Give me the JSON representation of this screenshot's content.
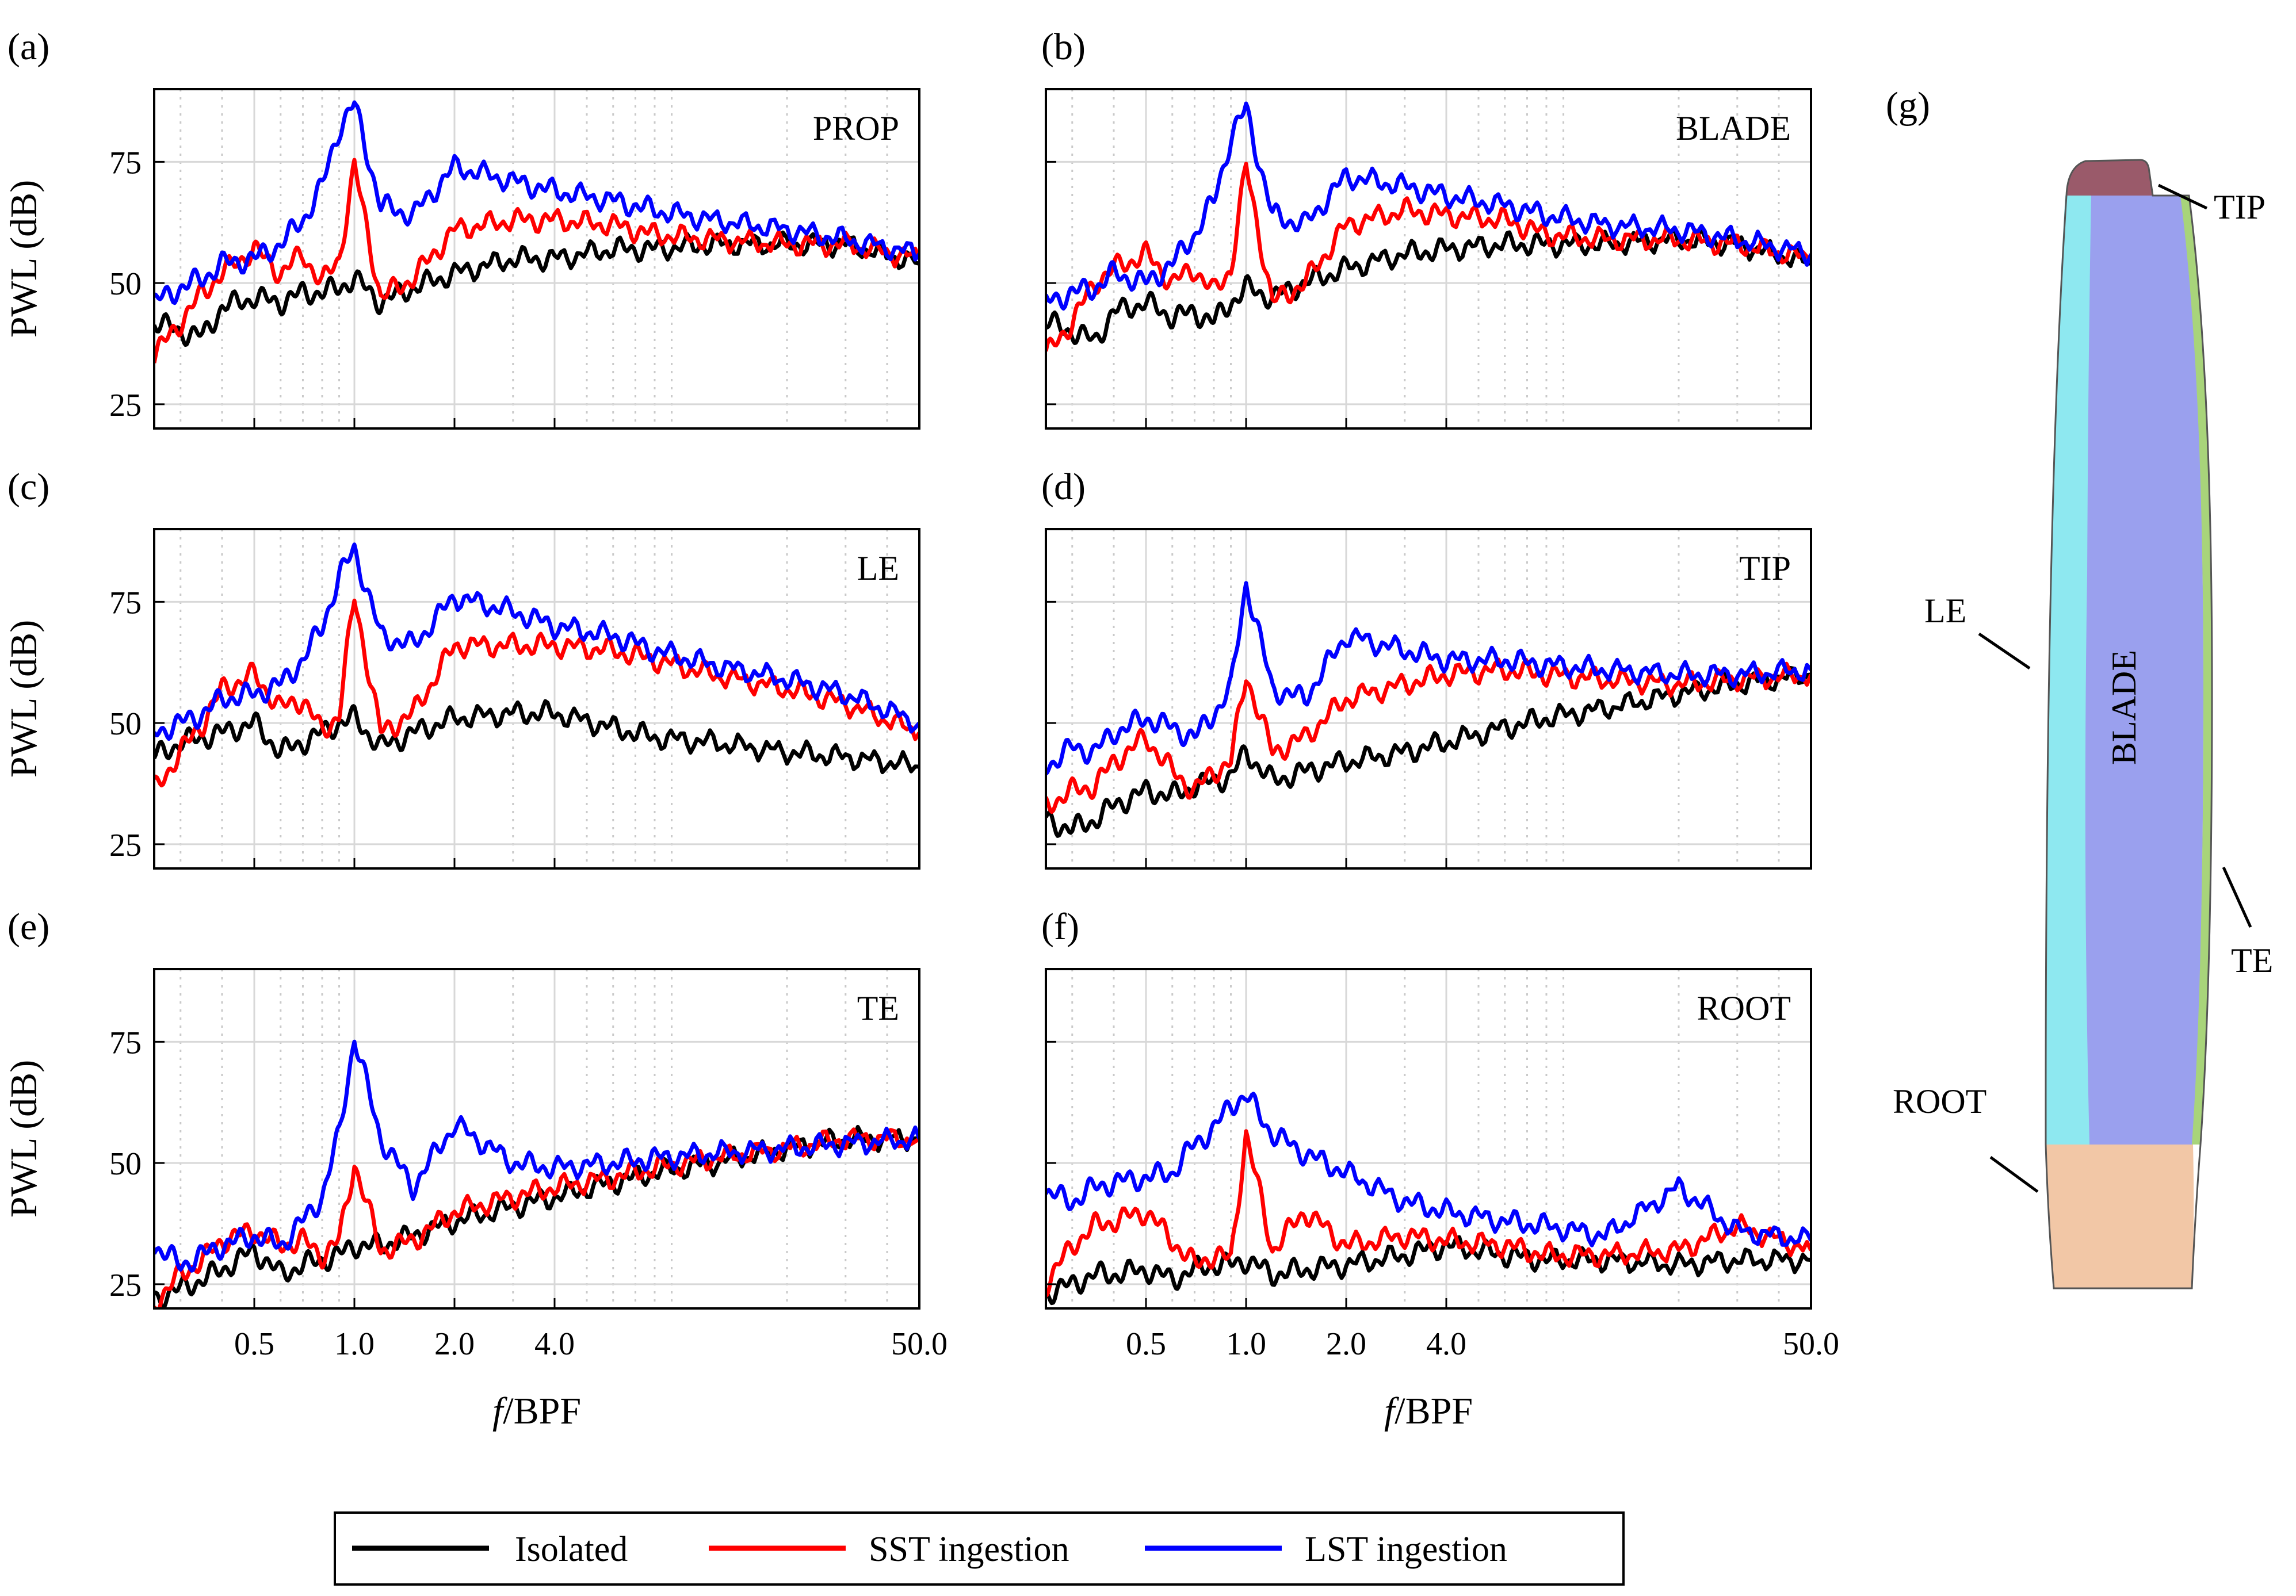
{
  "colors": {
    "isolated": "#000000",
    "sst": "#ff0000",
    "lst": "#0000ff",
    "grid": "#d8d8d8",
    "le_region": "#8ee8f0",
    "blade_region": "#9aa0ee",
    "te_region": "#a8d47a",
    "tip_region": "#9a5a6a",
    "root_region": "#f2c7a6"
  },
  "legend": {
    "placement": "bottom-center",
    "entries": [
      "Isolated",
      "SST ingestion",
      "LST ingestion"
    ]
  },
  "blade_diagram": {
    "letter": "(g)",
    "region_labels": {
      "tip": "TIP",
      "le": "LE",
      "blade": "BLADE",
      "te": "TE",
      "root": "ROOT"
    }
  },
  "chart_data": [
    {
      "type": "line",
      "letter": "(a)",
      "tag": "PROP",
      "xlabel": "",
      "ylabel": "PWL (dB)",
      "xscale": "log",
      "xlim": [
        0.25,
        50
      ],
      "ylim": [
        20,
        90
      ],
      "xticks": [
        "0.5",
        "1.0",
        "2.0",
        "4.0",
        "50.0"
      ],
      "show_xtick_labels": false,
      "yticks": [
        "25",
        "50",
        "75"
      ],
      "series": [
        {
          "name": "Isolated",
          "key": "isolated",
          "x": [
            0.25,
            0.3,
            0.35,
            0.4,
            0.5,
            0.6,
            0.7,
            0.8,
            0.9,
            1.0,
            1.2,
            1.5,
            2.0,
            3.0,
            4.0,
            6.0,
            8.0,
            12.0,
            20.0,
            30.0,
            50.0
          ],
          "y": [
            42,
            40,
            39,
            45,
            47,
            46,
            48,
            48,
            49,
            51,
            46,
            49,
            52,
            55,
            55,
            57,
            57,
            58,
            58,
            58,
            54
          ]
        },
        {
          "name": "SST ingestion",
          "key": "sst",
          "x": [
            0.25,
            0.3,
            0.35,
            0.4,
            0.5,
            0.6,
            0.7,
            0.8,
            0.9,
            1.0,
            1.2,
            1.5,
            2.0,
            3.0,
            4.0,
            6.0,
            8.0,
            12.0,
            20.0,
            30.0,
            50.0
          ],
          "y": [
            35,
            42,
            48,
            52,
            57,
            52,
            56,
            50,
            55,
            74,
            47,
            51,
            61,
            63,
            63,
            62,
            60,
            59,
            58,
            58,
            55
          ]
        },
        {
          "name": "LST ingestion",
          "key": "lst",
          "x": [
            0.25,
            0.3,
            0.35,
            0.4,
            0.5,
            0.6,
            0.7,
            0.8,
            0.9,
            1.0,
            1.2,
            1.5,
            2.0,
            3.0,
            4.0,
            6.0,
            8.0,
            12.0,
            20.0,
            30.0,
            50.0
          ],
          "y": [
            46,
            49,
            51,
            54,
            55,
            58,
            63,
            70,
            82,
            87,
            66,
            64,
            74,
            71,
            69,
            67,
            65,
            63,
            61,
            59,
            56
          ]
        }
      ]
    },
    {
      "type": "line",
      "letter": "(b)",
      "tag": "BLADE",
      "xlabel": "",
      "ylabel": "",
      "xscale": "log",
      "xlim": [
        0.25,
        50
      ],
      "ylim": [
        20,
        90
      ],
      "xticks": [
        "0.5",
        "1.0",
        "2.0",
        "4.0",
        "50.0"
      ],
      "show_xtick_labels": false,
      "yticks": [],
      "series": [
        {
          "name": "Isolated",
          "key": "isolated",
          "x": [
            0.25,
            0.3,
            0.35,
            0.4,
            0.5,
            0.6,
            0.7,
            0.8,
            0.9,
            1.0,
            1.2,
            1.5,
            2.0,
            3.0,
            4.0,
            6.0,
            8.0,
            12.0,
            20.0,
            30.0,
            50.0
          ],
          "y": [
            42,
            40,
            38,
            44,
            46,
            43,
            44,
            42,
            46,
            49,
            47,
            50,
            53,
            56,
            57,
            58,
            58,
            58,
            59,
            58,
            54
          ]
        },
        {
          "name": "SST ingestion",
          "key": "sst",
          "x": [
            0.25,
            0.3,
            0.35,
            0.4,
            0.5,
            0.6,
            0.7,
            0.8,
            0.9,
            1.0,
            1.2,
            1.5,
            2.0,
            3.0,
            4.0,
            6.0,
            8.0,
            12.0,
            20.0,
            30.0,
            50.0
          ],
          "y": [
            35,
            42,
            50,
            53,
            56,
            50,
            53,
            48,
            53,
            74,
            46,
            50,
            62,
            65,
            64,
            63,
            60,
            59,
            59,
            58,
            55
          ]
        },
        {
          "name": "LST ingestion",
          "key": "lst",
          "x": [
            0.25,
            0.3,
            0.35,
            0.4,
            0.5,
            0.6,
            0.7,
            0.8,
            0.9,
            1.0,
            1.2,
            1.5,
            2.0,
            3.0,
            4.0,
            6.0,
            8.0,
            12.0,
            20.0,
            30.0,
            50.0
          ],
          "y": [
            46,
            48,
            49,
            52,
            50,
            54,
            60,
            67,
            80,
            86,
            64,
            62,
            72,
            70,
            68,
            66,
            64,
            62,
            61,
            59,
            56
          ]
        }
      ]
    },
    {
      "type": "line",
      "letter": "(c)",
      "tag": "LE",
      "xlabel": "",
      "ylabel": "PWL (dB)",
      "xscale": "log",
      "xlim": [
        0.25,
        50
      ],
      "ylim": [
        20,
        90
      ],
      "xticks": [
        "0.5",
        "1.0",
        "2.0",
        "4.0",
        "50.0"
      ],
      "show_xtick_labels": false,
      "yticks": [
        "25",
        "50",
        "75"
      ],
      "series": [
        {
          "name": "Isolated",
          "key": "isolated",
          "x": [
            0.25,
            0.3,
            0.35,
            0.4,
            0.5,
            0.6,
            0.7,
            0.8,
            0.9,
            1.0,
            1.2,
            1.5,
            2.0,
            3.0,
            4.0,
            6.0,
            8.0,
            12.0,
            20.0,
            30.0,
            50.0
          ],
          "y": [
            43,
            46,
            47,
            48,
            50,
            44,
            46,
            48,
            50,
            51,
            45,
            48,
            51,
            52,
            52,
            49,
            47,
            46,
            44,
            43,
            41
          ]
        },
        {
          "name": "SST ingestion",
          "key": "sst",
          "x": [
            0.25,
            0.3,
            0.35,
            0.4,
            0.5,
            0.6,
            0.7,
            0.8,
            0.9,
            1.0,
            1.2,
            1.5,
            2.0,
            3.0,
            4.0,
            6.0,
            8.0,
            12.0,
            20.0,
            30.0,
            50.0
          ],
          "y": [
            36,
            44,
            50,
            57,
            60,
            53,
            55,
            48,
            52,
            76,
            48,
            52,
            66,
            66,
            66,
            65,
            63,
            60,
            57,
            54,
            48
          ]
        },
        {
          "name": "LST ingestion",
          "key": "lst",
          "x": [
            0.25,
            0.3,
            0.35,
            0.4,
            0.5,
            0.6,
            0.7,
            0.8,
            0.9,
            1.0,
            1.2,
            1.5,
            2.0,
            3.0,
            4.0,
            6.0,
            8.0,
            12.0,
            20.0,
            30.0,
            50.0
          ],
          "y": [
            48,
            50,
            52,
            55,
            56,
            58,
            63,
            70,
            80,
            86,
            68,
            66,
            76,
            73,
            70,
            68,
            65,
            62,
            59,
            56,
            50
          ]
        }
      ]
    },
    {
      "type": "line",
      "letter": "(d)",
      "tag": "TIP",
      "xlabel": "",
      "ylabel": "",
      "xscale": "log",
      "xlim": [
        0.25,
        50
      ],
      "ylim": [
        20,
        90
      ],
      "xticks": [
        "0.5",
        "1.0",
        "2.0",
        "4.0",
        "50.0"
      ],
      "show_xtick_labels": false,
      "yticks": [],
      "series": [
        {
          "name": "Isolated",
          "key": "isolated",
          "x": [
            0.25,
            0.3,
            0.35,
            0.4,
            0.5,
            0.6,
            0.7,
            0.8,
            0.9,
            1.0,
            1.2,
            1.5,
            2.0,
            3.0,
            4.0,
            6.0,
            8.0,
            12.0,
            20.0,
            30.0,
            50.0
          ],
          "y": [
            30,
            28,
            30,
            33,
            36,
            35,
            37,
            38,
            39,
            44,
            38,
            40,
            42,
            44,
            46,
            49,
            51,
            53,
            56,
            58,
            60
          ]
        },
        {
          "name": "SST ingestion",
          "key": "sst",
          "x": [
            0.25,
            0.3,
            0.35,
            0.4,
            0.5,
            0.6,
            0.7,
            0.8,
            0.9,
            1.0,
            1.2,
            1.5,
            2.0,
            3.0,
            4.0,
            6.0,
            8.0,
            12.0,
            20.0,
            30.0,
            50.0
          ],
          "y": [
            33,
            36,
            37,
            42,
            47,
            40,
            36,
            40,
            42,
            60,
            44,
            47,
            55,
            58,
            60,
            61,
            60,
            59,
            58,
            59,
            60
          ]
        },
        {
          "name": "LST ingestion",
          "key": "lst",
          "x": [
            0.25,
            0.3,
            0.35,
            0.4,
            0.5,
            0.6,
            0.7,
            0.8,
            0.9,
            1.0,
            1.2,
            1.5,
            2.0,
            3.0,
            4.0,
            6.0,
            8.0,
            12.0,
            20.0,
            30.0,
            50.0
          ],
          "y": [
            41,
            45,
            44,
            48,
            51,
            49,
            47,
            52,
            57,
            79,
            57,
            55,
            68,
            65,
            63,
            63,
            62,
            61,
            60,
            60,
            61
          ]
        }
      ]
    },
    {
      "type": "line",
      "letter": "(e)",
      "tag": "TE",
      "xlabel": "f/BPF",
      "ylabel": "PWL (dB)",
      "xscale": "log",
      "xlim": [
        0.25,
        50
      ],
      "ylim": [
        20,
        90
      ],
      "xticks": [
        "0.5",
        "1.0",
        "2.0",
        "4.0",
        "50.0"
      ],
      "show_xtick_labels": true,
      "yticks": [
        "25",
        "50",
        "75"
      ],
      "series": [
        {
          "name": "Isolated",
          "key": "isolated",
          "x": [
            0.25,
            0.3,
            0.35,
            0.4,
            0.5,
            0.6,
            0.7,
            0.8,
            0.9,
            1.0,
            1.2,
            1.5,
            2.0,
            3.0,
            4.0,
            6.0,
            8.0,
            12.0,
            20.0,
            30.0,
            50.0
          ],
          "y": [
            22,
            24,
            26,
            28,
            32,
            27,
            29,
            30,
            31,
            33,
            33,
            35,
            38,
            41,
            43,
            46,
            48,
            50,
            53,
            55,
            55
          ]
        },
        {
          "name": "SST ingestion",
          "key": "sst",
          "x": [
            0.25,
            0.3,
            0.35,
            0.4,
            0.5,
            0.6,
            0.7,
            0.8,
            0.9,
            1.0,
            1.2,
            1.5,
            2.0,
            3.0,
            4.0,
            6.0,
            8.0,
            12.0,
            20.0,
            30.0,
            50.0
          ],
          "y": [
            21,
            27,
            30,
            34,
            36,
            33,
            34,
            31,
            34,
            50,
            32,
            34,
            40,
            43,
            45,
            47,
            49,
            51,
            53,
            55,
            55
          ]
        },
        {
          "name": "LST ingestion",
          "key": "lst",
          "x": [
            0.25,
            0.3,
            0.35,
            0.4,
            0.5,
            0.6,
            0.7,
            0.8,
            0.9,
            1.0,
            1.2,
            1.5,
            2.0,
            3.0,
            4.0,
            6.0,
            8.0,
            12.0,
            20.0,
            30.0,
            50.0
          ],
          "y": [
            33,
            29,
            31,
            33,
            35,
            33,
            38,
            43,
            56,
            76,
            55,
            45,
            58,
            50,
            49,
            50,
            51,
            52,
            53,
            54,
            55
          ]
        }
      ]
    },
    {
      "type": "line",
      "letter": "(f)",
      "tag": "ROOT",
      "xlabel": "f/BPF",
      "ylabel": "",
      "xscale": "log",
      "xlim": [
        0.25,
        50
      ],
      "ylim": [
        20,
        90
      ],
      "xticks": [
        "0.5",
        "1.0",
        "2.0",
        "4.0",
        "50.0"
      ],
      "show_xtick_labels": true,
      "yticks": [],
      "series": [
        {
          "name": "Isolated",
          "key": "isolated",
          "x": [
            0.25,
            0.3,
            0.35,
            0.4,
            0.5,
            0.6,
            0.7,
            0.8,
            0.9,
            1.0,
            1.2,
            1.5,
            2.0,
            3.0,
            4.0,
            6.0,
            8.0,
            12.0,
            20.0,
            30.0,
            50.0
          ],
          "y": [
            23,
            25,
            27,
            27,
            28,
            26,
            28,
            29,
            29,
            30,
            27,
            28,
            29,
            31,
            33,
            31,
            30,
            30,
            29,
            30,
            30
          ]
        },
        {
          "name": "SST ingestion",
          "key": "sst",
          "x": [
            0.25,
            0.3,
            0.35,
            0.4,
            0.5,
            0.6,
            0.7,
            0.8,
            0.9,
            1.0,
            1.2,
            1.5,
            2.0,
            3.0,
            4.0,
            6.0,
            8.0,
            12.0,
            20.0,
            30.0,
            50.0
          ],
          "y": [
            25,
            33,
            37,
            38,
            40,
            34,
            29,
            31,
            30,
            56,
            32,
            40,
            33,
            35,
            34,
            33,
            31,
            31,
            32,
            37,
            32
          ]
        },
        {
          "name": "LST ingestion",
          "key": "lst",
          "x": [
            0.25,
            0.3,
            0.35,
            0.4,
            0.5,
            0.6,
            0.7,
            0.8,
            0.9,
            1.0,
            1.2,
            1.5,
            2.0,
            3.0,
            4.0,
            6.0,
            8.0,
            12.0,
            20.0,
            30.0,
            50.0
          ],
          "y": [
            44,
            42,
            45,
            46,
            47,
            48,
            54,
            57,
            62,
            64,
            56,
            52,
            48,
            42,
            40,
            38,
            37,
            35,
            45,
            36,
            34
          ]
        }
      ]
    }
  ]
}
